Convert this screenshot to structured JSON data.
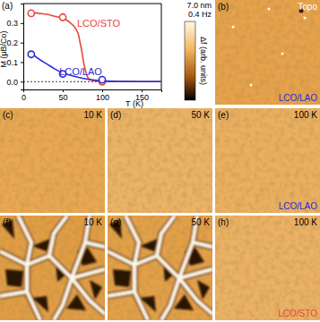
{
  "chart_data": {
    "type": "line",
    "label": "(a)",
    "x_label": "T (K)",
    "y_label": "M (μB/Co)",
    "xlim": [
      0,
      175
    ],
    "ylim": [
      -0.04,
      0.4
    ],
    "xticks": [
      0,
      50,
      100,
      150
    ],
    "yticks": [
      {
        "value": 0,
        "label": "0.0"
      },
      {
        "value": 0.1,
        "label": "0.1"
      },
      {
        "value": 0.2,
        "label": "0.2"
      },
      {
        "value": 0.3,
        "label": "0.3"
      }
    ],
    "reference_line": 0,
    "series": [
      {
        "name": "LCO/STO",
        "color": "#e8453c",
        "marker": "circle",
        "line_style": "solid",
        "x": [
          10,
          20,
          30,
          40,
          50,
          55,
          60,
          65,
          68,
          70,
          72,
          74,
          76,
          78,
          80,
          82,
          85,
          90,
          100,
          120,
          150,
          175
        ],
        "values": [
          0.355,
          0.35,
          0.345,
          0.335,
          0.325,
          0.315,
          0.3,
          0.28,
          0.26,
          0.24,
          0.2,
          0.16,
          0.11,
          0.07,
          0.04,
          0.02,
          0.01,
          0.004,
          0.002,
          0.001,
          0,
          0
        ],
        "points_x": [
          10,
          50,
          100
        ],
        "points": [
          0.35,
          0.33,
          0.0
        ]
      },
      {
        "name": "LCO/LAO",
        "color": "#2b2bd6",
        "marker": "circle",
        "line_style": "solid",
        "x": [
          10,
          15,
          20,
          30,
          40,
          50,
          60,
          70,
          80,
          90,
          100,
          110,
          120,
          150,
          175
        ],
        "values": [
          0.15,
          0.13,
          0.115,
          0.09,
          0.065,
          0.045,
          0.032,
          0.022,
          0.014,
          0.008,
          0.004,
          0.002,
          0.001,
          0,
          0
        ],
        "points_x": [
          10,
          50,
          100
        ],
        "points": [
          0.14,
          0.04,
          0.01
        ]
      }
    ]
  },
  "colorbar": {
    "labels": [
      "7.0 nm",
      "0.4 Hz"
    ],
    "title": "Δf (arb. units)"
  },
  "panels": [
    {
      "label": "(b)",
      "title": "Topo",
      "sample": "LCO/LAO"
    },
    {
      "label": "(c)",
      "title": "10 K"
    },
    {
      "label": "(d)",
      "title": "50 K"
    },
    {
      "label": "(e)",
      "title": "100 K",
      "sample": "LCO/LAO"
    },
    {
      "label": "(f)",
      "title": "10 K"
    },
    {
      "label": "(g)",
      "title": "50 K"
    },
    {
      "label": "(h)",
      "title": "100 K",
      "sample": "LCO/STO"
    }
  ]
}
